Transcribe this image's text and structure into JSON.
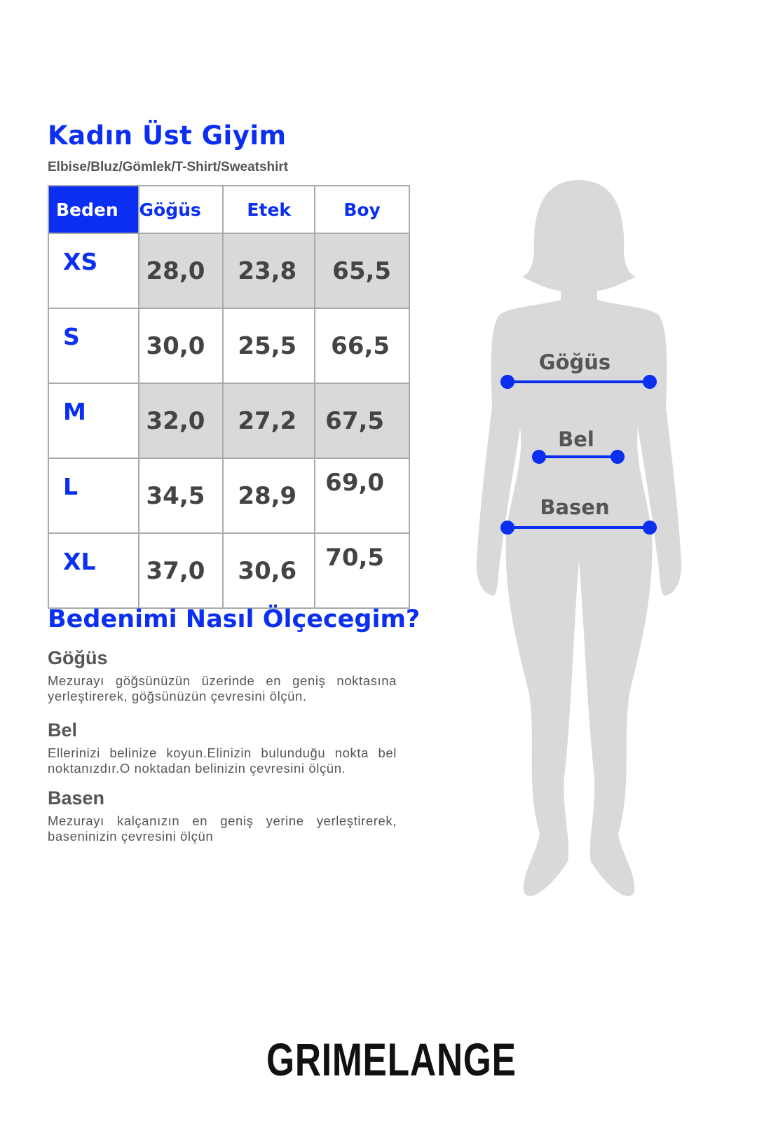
{
  "header": {
    "title": "Kadın Üst Giyim",
    "subtitle": "Elbise/Bluz/Gömlek/T-Shirt/Sweatshirt"
  },
  "table": {
    "columns": [
      "Beden",
      "Göğüs",
      "Etek",
      "Boy"
    ],
    "rows": [
      {
        "size": "XS",
        "gogus": "28,0",
        "etek": "23,8",
        "boy": "65,5",
        "shaded": true
      },
      {
        "size": "S",
        "gogus": "30,0",
        "etek": "25,5",
        "boy": "66,5",
        "shaded": false
      },
      {
        "size": "M",
        "gogus": "32,0",
        "etek": "27,2",
        "boy": "67,5",
        "shaded": true
      },
      {
        "size": "L",
        "gogus": "34,5",
        "etek": "28,9",
        "boy": "69,0",
        "shaded": false
      },
      {
        "size": "XL",
        "gogus": "37,0",
        "etek": "30,6",
        "boy": "70,5",
        "shaded": false
      }
    ]
  },
  "guide": {
    "title": "Bedenimi Nasıl Ölçecegim?",
    "sections": [
      {
        "heading": "Göğüs",
        "text": "Mezurayı göğsünüzün üzerinde en geniş noktasına yerleştirerek, göğsünüzün çevresini ölçün."
      },
      {
        "heading": "Bel",
        "text": "Ellerinizi belinize koyun.Elinizin bulunduğu nokta bel noktanızdır.O noktadan belinizin çevresini ölçün."
      },
      {
        "heading": "Basen",
        "text": "Mezurayı kalçanızın en geniş yerine yerleştirerek, baseninizin çevresini ölçün"
      }
    ]
  },
  "figure": {
    "labels": [
      "Göğüs",
      "Bel",
      "Basen"
    ]
  },
  "brand": "GRIMELANGE",
  "colors": {
    "accent": "#0a2ff0",
    "text": "#555555",
    "shade": "#d9d9d9",
    "silhouette": "#d9d9d9"
  }
}
